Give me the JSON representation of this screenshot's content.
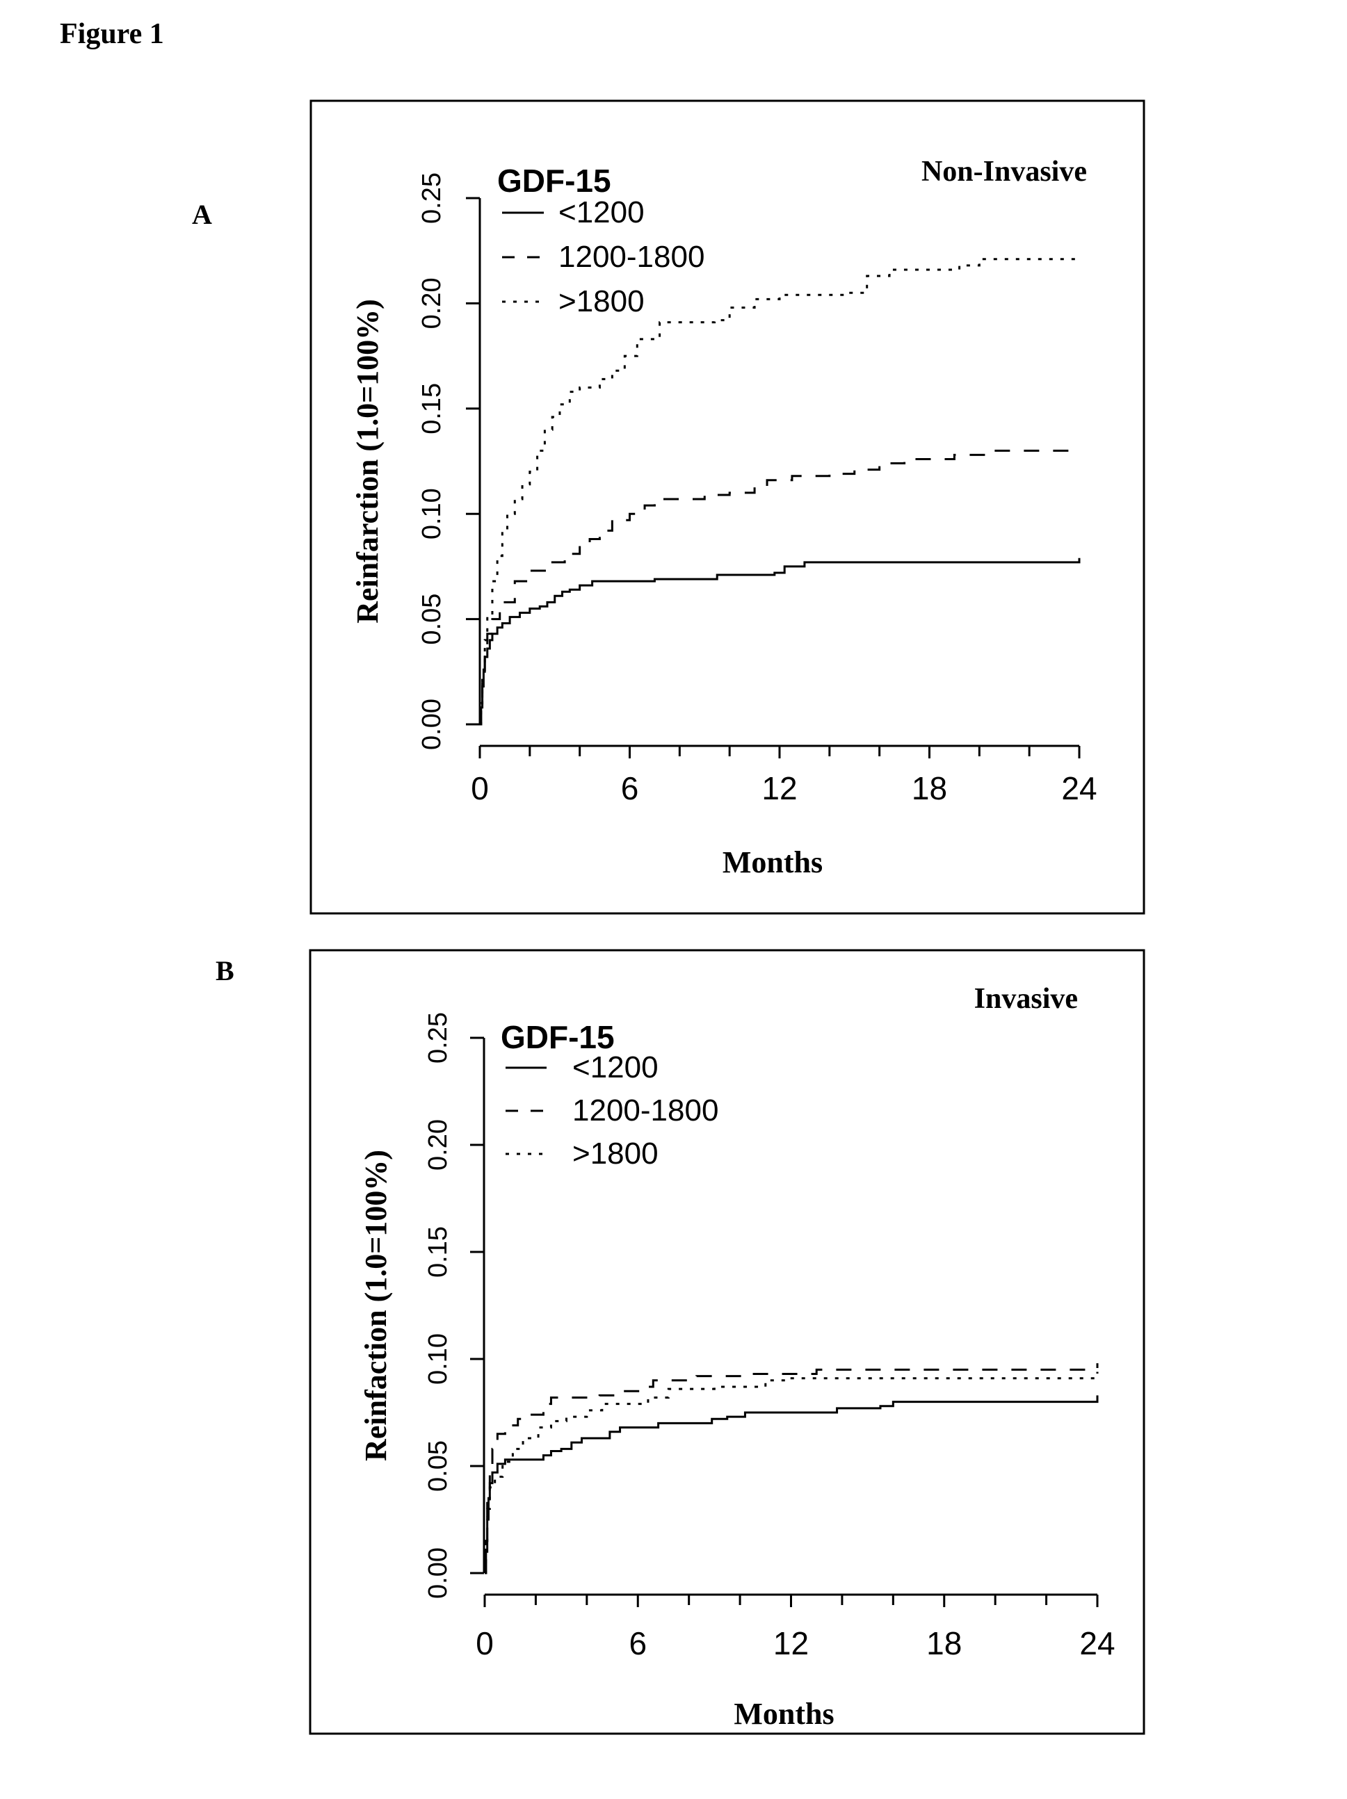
{
  "figure_title": "Figure 1",
  "chart_data": [
    {
      "panel": "A",
      "type": "line",
      "step": true,
      "title": "Non-Invasive",
      "legend_title": "GDF-15",
      "legend_position": "top-left",
      "xlabel": "Months",
      "ylabel": "Reinfarction (1.0=100%)",
      "xlim": [
        0,
        24
      ],
      "ylim": [
        0,
        0.25
      ],
      "xticks": [
        0,
        6,
        12,
        18,
        24
      ],
      "xtick_labels": [
        "0",
        "6",
        "12",
        "18",
        "24"
      ],
      "x_minor_ticks": [
        2,
        4,
        8,
        10,
        14,
        16,
        20,
        22
      ],
      "yticks": [
        0,
        0.05,
        0.1,
        0.15,
        0.2,
        0.25
      ],
      "ytick_labels": [
        "0.00",
        "0.05",
        "0.10",
        "0.15",
        "0.20",
        "0.25"
      ],
      "grid": false,
      "series": [
        {
          "name": "<1200",
          "style": "solid",
          "x": [
            0,
            0.05,
            0.1,
            0.15,
            0.2,
            0.3,
            0.4,
            0.5,
            0.7,
            0.9,
            1.2,
            1.6,
            2.0,
            2.4,
            2.7,
            3.0,
            3.3,
            3.6,
            4.0,
            4.5,
            7.0,
            9.5,
            11.8,
            12.2,
            13.0,
            23.7,
            24.0
          ],
          "y": [
            0.0,
            0.008,
            0.018,
            0.026,
            0.032,
            0.036,
            0.04,
            0.043,
            0.046,
            0.048,
            0.051,
            0.053,
            0.055,
            0.056,
            0.058,
            0.061,
            0.063,
            0.064,
            0.066,
            0.068,
            0.069,
            0.071,
            0.072,
            0.075,
            0.077,
            0.077,
            0.079
          ]
        },
        {
          "name": "1200-1800",
          "style": "dashed",
          "x": [
            0,
            0.05,
            0.1,
            0.2,
            0.3,
            0.5,
            0.8,
            1.0,
            1.4,
            2.0,
            2.7,
            3.4,
            4.0,
            4.4,
            4.8,
            5.3,
            6.0,
            6.6,
            7.0,
            8.0,
            9.0,
            10.0,
            11.0,
            11.5,
            12.5,
            14.0,
            15.0,
            16.0,
            17.0,
            19.0,
            20.5,
            24.0
          ],
          "y": [
            0.0,
            0.012,
            0.025,
            0.035,
            0.043,
            0.05,
            0.055,
            0.058,
            0.068,
            0.073,
            0.077,
            0.081,
            0.085,
            0.088,
            0.092,
            0.097,
            0.1,
            0.104,
            0.107,
            0.107,
            0.109,
            0.11,
            0.113,
            0.116,
            0.118,
            0.119,
            0.121,
            0.124,
            0.126,
            0.128,
            0.13,
            0.13
          ]
        },
        {
          "name": ">1800",
          "style": "dotted",
          "x": [
            0,
            0.05,
            0.1,
            0.2,
            0.3,
            0.5,
            0.7,
            0.9,
            1.1,
            1.4,
            1.7,
            2.0,
            2.3,
            2.6,
            2.9,
            3.2,
            3.6,
            4.0,
            4.8,
            5.3,
            5.8,
            6.3,
            7.2,
            9.4,
            10.0,
            11.0,
            12.0,
            14.6,
            15.5,
            16.4,
            19.2,
            20.0,
            24.0
          ],
          "y": [
            0.0,
            0.01,
            0.025,
            0.04,
            0.052,
            0.068,
            0.08,
            0.092,
            0.1,
            0.107,
            0.114,
            0.12,
            0.13,
            0.14,
            0.146,
            0.152,
            0.158,
            0.16,
            0.164,
            0.168,
            0.175,
            0.183,
            0.191,
            0.192,
            0.198,
            0.202,
            0.204,
            0.205,
            0.213,
            0.216,
            0.218,
            0.221,
            0.221
          ]
        }
      ]
    },
    {
      "panel": "B",
      "type": "line",
      "step": true,
      "title": "Invasive",
      "legend_title": "GDF-15",
      "legend_position": "top-left",
      "xlabel": "Months",
      "ylabel": "Reinfaction (1.0=100%)",
      "xlim": [
        0,
        24
      ],
      "ylim": [
        0,
        0.25
      ],
      "xticks": [
        0,
        6,
        12,
        18,
        24
      ],
      "xtick_labels": [
        "0",
        "6",
        "12",
        "18",
        "24"
      ],
      "x_minor_ticks": [
        2,
        4,
        8,
        10,
        14,
        16,
        20,
        22
      ],
      "yticks": [
        0,
        0.05,
        0.1,
        0.15,
        0.2,
        0.25
      ],
      "ytick_labels": [
        "0.00",
        "0.05",
        "0.10",
        "0.15",
        "0.20",
        "0.25"
      ],
      "grid": false,
      "series": [
        {
          "name": "<1200",
          "style": "solid",
          "x": [
            0,
            0.05,
            0.1,
            0.15,
            0.2,
            0.3,
            0.5,
            0.8,
            2.3,
            2.6,
            3.0,
            3.4,
            3.8,
            4.9,
            5.3,
            6.8,
            8.9,
            9.5,
            10.2,
            13.0,
            13.8,
            15.5,
            16.0,
            23.8,
            24.0
          ],
          "y": [
            0.0,
            0.01,
            0.025,
            0.035,
            0.042,
            0.047,
            0.051,
            0.053,
            0.055,
            0.057,
            0.058,
            0.061,
            0.063,
            0.066,
            0.068,
            0.07,
            0.072,
            0.073,
            0.075,
            0.075,
            0.077,
            0.078,
            0.08,
            0.08,
            0.083
          ]
        },
        {
          "name": "1200-1800",
          "style": "dashed",
          "x": [
            0,
            0.05,
            0.1,
            0.2,
            0.3,
            0.5,
            0.8,
            1.3,
            1.8,
            2.3,
            2.6,
            4.5,
            5.3,
            6.2,
            6.6,
            8.3,
            10.5,
            12.5,
            13.0,
            19.0,
            23.8,
            24.0
          ],
          "y": [
            0.0,
            0.015,
            0.035,
            0.05,
            0.058,
            0.065,
            0.069,
            0.072,
            0.074,
            0.079,
            0.082,
            0.083,
            0.085,
            0.087,
            0.09,
            0.092,
            0.093,
            0.093,
            0.095,
            0.095,
            0.095,
            0.098
          ]
        },
        {
          "name": ">1800",
          "style": "dotted",
          "x": [
            0,
            0.05,
            0.1,
            0.2,
            0.4,
            0.7,
            1.1,
            1.5,
            2.1,
            2.6,
            3.2,
            4.0,
            4.6,
            6.0,
            6.4,
            7.2,
            9.0,
            10.3,
            11.0,
            11.8,
            23.7,
            24.0
          ],
          "y": [
            0.0,
            0.015,
            0.03,
            0.04,
            0.045,
            0.052,
            0.058,
            0.063,
            0.068,
            0.071,
            0.073,
            0.076,
            0.079,
            0.079,
            0.082,
            0.086,
            0.087,
            0.087,
            0.09,
            0.091,
            0.091,
            0.094
          ]
        }
      ]
    }
  ]
}
